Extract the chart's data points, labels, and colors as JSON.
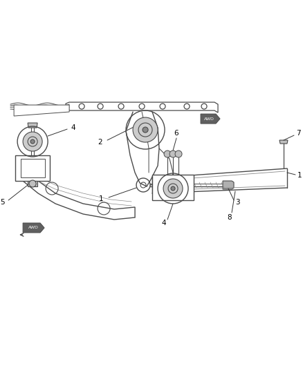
{
  "bg_color": "#ffffff",
  "line_color": "#4a4a4a",
  "label_color": "#000000",
  "figsize": [
    4.38,
    5.33
  ],
  "dpi": 100,
  "lw": 0.9
}
